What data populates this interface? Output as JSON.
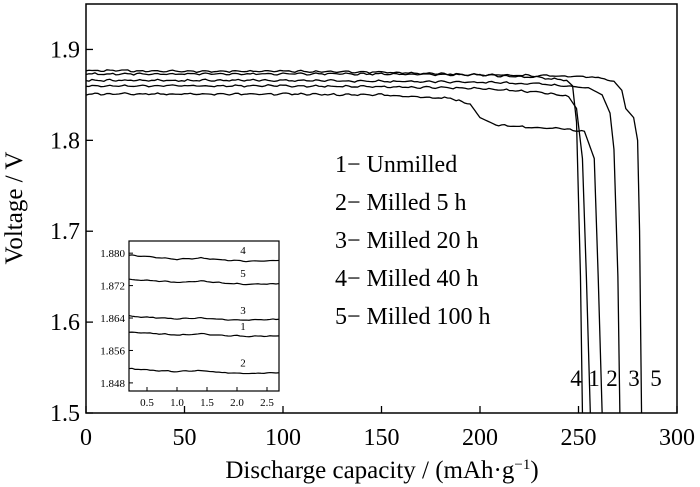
{
  "chart_data": {
    "type": "line",
    "xlabel": "Discharge capacity / (mAh·g",
    "xlabel_sup": "−1",
    "xlabel_close": ")",
    "ylabel": "Voltage / V",
    "xlim": [
      0,
      300
    ],
    "ylim": [
      1.5,
      1.95
    ],
    "xticks": [
      0,
      50,
      100,
      150,
      200,
      250,
      300
    ],
    "yticks": [
      1.5,
      1.6,
      1.7,
      1.8,
      1.9
    ],
    "xtick_labels": [
      "0",
      "50",
      "100",
      "150",
      "200",
      "250",
      "300"
    ],
    "ytick_labels": [
      "1.5",
      "1.6",
      "1.7",
      "1.8",
      "1.9"
    ],
    "grid": false,
    "legend": [
      {
        "id": "1",
        "text": "1− Unmilled"
      },
      {
        "id": "2",
        "text": "2− Milled 5 h"
      },
      {
        "id": "3",
        "text": "3− Milled 20 h"
      },
      {
        "id": "4",
        "text": "4− Milled 40 h"
      },
      {
        "id": "5",
        "text": "5− Milled 100 h"
      }
    ],
    "series": [
      {
        "id": "1",
        "label": "1",
        "points": [
          [
            0,
            1.86
          ],
          [
            50,
            1.86
          ],
          [
            100,
            1.86
          ],
          [
            150,
            1.859
          ],
          [
            200,
            1.857
          ],
          [
            230,
            1.853
          ],
          [
            245,
            1.848
          ],
          [
            249,
            1.835
          ],
          [
            252,
            1.78
          ],
          [
            254,
            1.65
          ],
          [
            256,
            1.5
          ]
        ]
      },
      {
        "id": "2",
        "label": "2",
        "points": [
          [
            0,
            1.851
          ],
          [
            50,
            1.851
          ],
          [
            100,
            1.851
          ],
          [
            150,
            1.85
          ],
          [
            185,
            1.846
          ],
          [
            195,
            1.84
          ],
          [
            200,
            1.825
          ],
          [
            208,
            1.817
          ],
          [
            220,
            1.815
          ],
          [
            240,
            1.813
          ],
          [
            253,
            1.81
          ],
          [
            258,
            1.78
          ],
          [
            260,
            1.65
          ],
          [
            262,
            1.5
          ]
        ]
      },
      {
        "id": "3",
        "label": "3",
        "points": [
          [
            0,
            1.866
          ],
          [
            50,
            1.866
          ],
          [
            100,
            1.866
          ],
          [
            150,
            1.865
          ],
          [
            200,
            1.864
          ],
          [
            230,
            1.862
          ],
          [
            255,
            1.858
          ],
          [
            262,
            1.85
          ],
          [
            266,
            1.83
          ],
          [
            268,
            1.79
          ],
          [
            270,
            1.65
          ],
          [
            271,
            1.5
          ]
        ]
      },
      {
        "id": "4",
        "label": "4",
        "points": [
          [
            0,
            1.877
          ],
          [
            50,
            1.876
          ],
          [
            100,
            1.876
          ],
          [
            150,
            1.875
          ],
          [
            200,
            1.872
          ],
          [
            230,
            1.869
          ],
          [
            244,
            1.866
          ],
          [
            247,
            1.86
          ],
          [
            249,
            1.82
          ],
          [
            251,
            1.65
          ],
          [
            252,
            1.5
          ]
        ]
      },
      {
        "id": "5",
        "label": "5",
        "points": [
          [
            0,
            1.873
          ],
          [
            50,
            1.873
          ],
          [
            100,
            1.873
          ],
          [
            150,
            1.873
          ],
          [
            200,
            1.872
          ],
          [
            240,
            1.871
          ],
          [
            260,
            1.869
          ],
          [
            268,
            1.865
          ],
          [
            272,
            1.855
          ],
          [
            274,
            1.835
          ],
          [
            278,
            1.825
          ],
          [
            280,
            1.8
          ],
          [
            281,
            1.7
          ],
          [
            282,
            1.5
          ]
        ]
      }
    ],
    "curve_labels": [
      "4",
      "1",
      "2",
      "3",
      "5"
    ],
    "inset": {
      "xlim": [
        0.2,
        2.7
      ],
      "ylim": [
        1.846,
        1.883
      ],
      "xticks": [
        0.5,
        1.0,
        1.5,
        2.0,
        2.5
      ],
      "yticks": [
        1.848,
        1.856,
        1.864,
        1.872,
        1.88
      ],
      "xtick_labels": [
        "0.5",
        "1.0",
        "1.5",
        "2.0",
        "2.5"
      ],
      "ytick_labels": [
        "1.848",
        "1.856",
        "1.864",
        "1.872",
        "1.880"
      ],
      "series": [
        {
          "id": "4",
          "label": "4",
          "points": [
            [
              0.2,
              1.8795
            ],
            [
              0.6,
              1.879
            ],
            [
              1.0,
              1.8785
            ],
            [
              1.4,
              1.8788
            ],
            [
              1.8,
              1.8783
            ],
            [
              2.2,
              1.878
            ],
            [
              2.7,
              1.8782
            ]
          ]
        },
        {
          "id": "5",
          "label": "5",
          "points": [
            [
              0.2,
              1.8735
            ],
            [
              0.6,
              1.8732
            ],
            [
              1.0,
              1.8728
            ],
            [
              1.4,
              1.8731
            ],
            [
              1.8,
              1.8726
            ],
            [
              2.2,
              1.8723
            ],
            [
              2.7,
              1.8725
            ]
          ]
        },
        {
          "id": "3",
          "label": "3",
          "points": [
            [
              0.2,
              1.8645
            ],
            [
              0.6,
              1.8641
            ],
            [
              1.0,
              1.8638
            ],
            [
              1.4,
              1.864
            ],
            [
              1.8,
              1.8636
            ],
            [
              2.2,
              1.8635
            ],
            [
              2.7,
              1.8637
            ]
          ]
        },
        {
          "id": "1",
          "label": "1",
          "points": [
            [
              0.2,
              1.8605
            ],
            [
              0.6,
              1.8602
            ],
            [
              1.0,
              1.8598
            ],
            [
              1.4,
              1.8601
            ],
            [
              1.8,
              1.8597
            ],
            [
              2.2,
              1.8595
            ],
            [
              2.7,
              1.8596
            ]
          ]
        },
        {
          "id": "2",
          "label": "2",
          "points": [
            [
              0.2,
              1.8515
            ],
            [
              0.6,
              1.8511
            ],
            [
              1.0,
              1.8508
            ],
            [
              1.4,
              1.851
            ],
            [
              1.8,
              1.8505
            ],
            [
              2.2,
              1.8503
            ],
            [
              2.7,
              1.8505
            ]
          ]
        }
      ]
    }
  }
}
